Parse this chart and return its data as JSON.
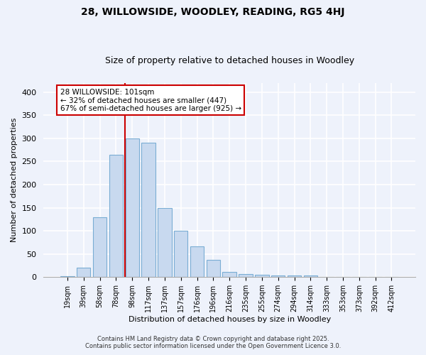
{
  "title1": "28, WILLOWSIDE, WOODLEY, READING, RG5 4HJ",
  "title2": "Size of property relative to detached houses in Woodley",
  "xlabel": "Distribution of detached houses by size in Woodley",
  "ylabel": "Number of detached properties",
  "bar_labels": [
    "19sqm",
    "39sqm",
    "58sqm",
    "78sqm",
    "98sqm",
    "117sqm",
    "137sqm",
    "157sqm",
    "176sqm",
    "196sqm",
    "216sqm",
    "235sqm",
    "255sqm",
    "274sqm",
    "294sqm",
    "314sqm",
    "333sqm",
    "353sqm",
    "373sqm",
    "392sqm",
    "412sqm"
  ],
  "bar_values": [
    2,
    21,
    130,
    265,
    300,
    290,
    150,
    100,
    67,
    37,
    11,
    6,
    5,
    3,
    4,
    3,
    1,
    1,
    0,
    0,
    0
  ],
  "bar_color": "#c8d9ef",
  "bar_edgecolor": "#7aadd4",
  "red_line_x": 3.55,
  "annotation_title": "28 WILLOWSIDE: 101sqm",
  "annotation_line1": "← 32% of detached houses are smaller (447)",
  "annotation_line2": "67% of semi-detached houses are larger (925) →",
  "annotation_box_color": "#ffffff",
  "annotation_box_edgecolor": "#cc0000",
  "background_color": "#eef2fb",
  "grid_color": "#ffffff",
  "ylim": [
    0,
    420
  ],
  "yticks": [
    0,
    50,
    100,
    150,
    200,
    250,
    300,
    350,
    400
  ],
  "footer1": "Contains HM Land Registry data © Crown copyright and database right 2025.",
  "footer2": "Contains public sector information licensed under the Open Government Licence 3.0."
}
